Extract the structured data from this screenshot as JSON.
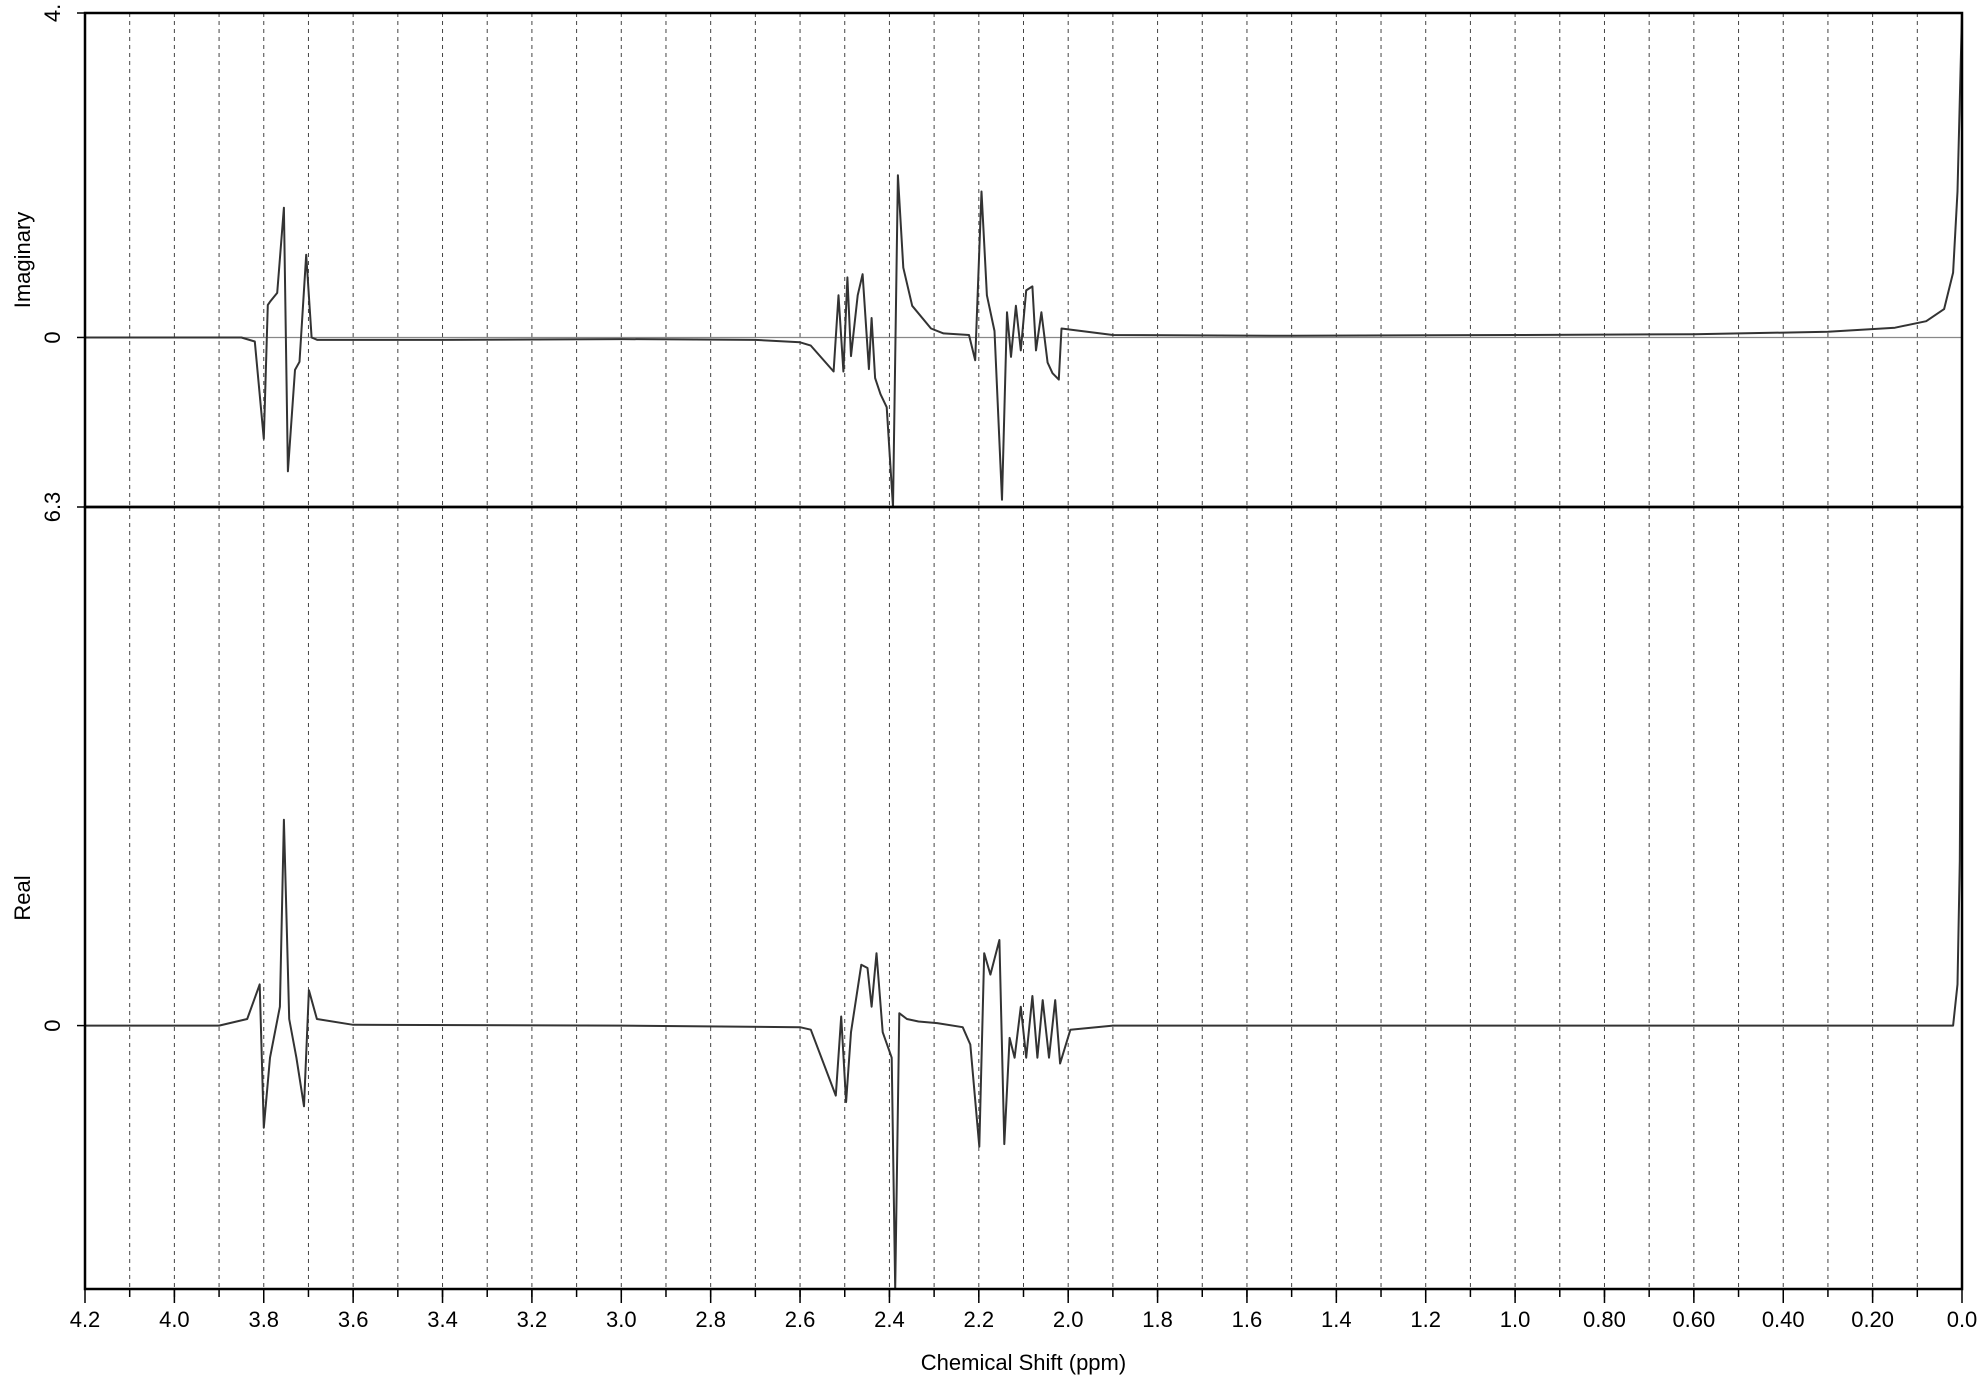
{
  "chart_data": [
    {
      "type": "line",
      "ylabel": "Imaginary",
      "color": "#333333",
      "zero_line": true,
      "xlim": [
        4.2,
        0.0
      ],
      "ylim": [
        -2.09,
        4
      ],
      "yticks": [
        0,
        {
          "value": 4,
          "label": "4."
        }
      ],
      "xgrid": [
        4.1,
        4.0,
        3.9,
        3.8,
        3.7,
        3.6,
        3.5,
        3.4,
        3.3,
        3.2,
        3.1,
        3.0,
        2.9,
        2.8,
        2.7,
        2.6,
        2.5,
        2.4,
        2.3,
        2.2,
        2.1,
        2.0,
        1.9,
        1.8,
        1.7,
        1.6,
        1.5,
        1.4,
        1.3,
        1.2,
        1.1,
        1.0,
        0.9,
        0.8,
        0.7,
        0.6,
        0.5,
        0.4,
        0.3,
        0.2,
        0.1
      ],
      "x": [
        4.2,
        3.85,
        3.82,
        3.8,
        3.791,
        3.786,
        3.77,
        3.755,
        3.746,
        3.73,
        3.72,
        3.705,
        3.693,
        3.68,
        3.4,
        3.0,
        2.7,
        2.6,
        2.576,
        2.525,
        2.514,
        2.503,
        2.494,
        2.486,
        2.471,
        2.46,
        2.446,
        2.44,
        2.432,
        2.42,
        2.406,
        2.392,
        2.381,
        2.369,
        2.349,
        2.307,
        2.279,
        2.222,
        2.208,
        2.194,
        2.182,
        2.165,
        2.148,
        2.137,
        2.128,
        2.117,
        2.106,
        2.094,
        2.08,
        2.072,
        2.06,
        2.046,
        2.035,
        2.021,
        2.015,
        1.9,
        1.5,
        1.0,
        0.6,
        0.3,
        0.15,
        0.08,
        0.04,
        0.02,
        0.01,
        0.0
      ],
      "values": [
        0,
        0,
        -0.05,
        -1.25,
        0.4,
        0.44,
        0.55,
        1.6,
        -1.65,
        -0.4,
        -0.3,
        1.02,
        0,
        -0.03,
        -0.03,
        -0.02,
        -0.03,
        -0.06,
        -0.1,
        -0.42,
        0.52,
        -0.42,
        0.74,
        -0.23,
        0.52,
        0.78,
        -0.39,
        0.24,
        -0.5,
        -0.7,
        -0.86,
        -2.09,
        2.0,
        0.86,
        0.39,
        0.11,
        0.05,
        0.03,
        -0.28,
        1.8,
        0.52,
        0.08,
        -2.0,
        0.31,
        -0.24,
        0.39,
        -0.16,
        0.58,
        0.63,
        -0.16,
        0.31,
        -0.31,
        -0.44,
        -0.52,
        0.11,
        0.03,
        0.02,
        0.03,
        0.04,
        0.07,
        0.12,
        0.2,
        0.35,
        0.8,
        1.8,
        4
      ]
    },
    {
      "type": "line",
      "ylabel": "Real",
      "xlabel": "Chemical Shift (ppm)",
      "color": "#333333",
      "zero_line": false,
      "xlim": [
        4.2,
        0.0
      ],
      "ylim": [
        -3.2,
        6.3
      ],
      "yticks": [
        0,
        6.3
      ],
      "xticks": [
        4.2,
        {
          "value": 4,
          "label": "4.0"
        },
        3.8,
        3.6,
        3.4,
        3.2,
        {
          "value": 3,
          "label": "3.0"
        },
        2.8,
        2.6,
        2.4,
        2.2,
        {
          "value": 2,
          "label": "2.0"
        },
        1.8,
        1.6,
        1.4,
        1.2,
        {
          "value": 1,
          "label": "1.0"
        },
        {
          "value": 0.8,
          "label": "0.80"
        },
        {
          "value": 0.6,
          "label": "0.60"
        },
        {
          "value": 0.4,
          "label": "0.40"
        },
        {
          "value": 0.2,
          "label": "0.20"
        },
        {
          "value": 0,
          "label": "0.0"
        }
      ],
      "xgrid": [
        4.1,
        4.0,
        3.9,
        3.8,
        3.7,
        3.6,
        3.5,
        3.4,
        3.3,
        3.2,
        3.1,
        3.0,
        2.9,
        2.8,
        2.7,
        2.6,
        2.5,
        2.4,
        2.3,
        2.2,
        2.1,
        2.0,
        1.9,
        1.8,
        1.7,
        1.6,
        1.5,
        1.4,
        1.3,
        1.2,
        1.1,
        1.0,
        0.9,
        0.8,
        0.7,
        0.6,
        0.5,
        0.4,
        0.3,
        0.2,
        0.1
      ],
      "x": [
        4.2,
        3.9,
        3.837,
        3.809,
        3.8,
        3.786,
        3.764,
        3.755,
        3.743,
        3.727,
        3.71,
        3.699,
        3.681,
        3.6,
        3.0,
        2.6,
        2.576,
        2.52,
        2.508,
        2.497,
        2.486,
        2.463,
        2.449,
        2.44,
        2.429,
        2.415,
        2.395,
        2.387,
        2.378,
        2.361,
        2.335,
        2.293,
        2.236,
        2.219,
        2.199,
        2.188,
        2.174,
        2.154,
        2.143,
        2.131,
        2.12,
        2.106,
        2.094,
        2.08,
        2.069,
        2.057,
        2.043,
        2.029,
        2.018,
        1.995,
        1.9,
        1.0,
        0.02,
        0.01,
        0.005,
        0.0
      ],
      "values": [
        0,
        0,
        0.08,
        0.5,
        -1.24,
        -0.39,
        0.23,
        2.5,
        0.08,
        -0.39,
        -0.98,
        0.43,
        0.08,
        0.01,
        0,
        -0.02,
        -0.05,
        -0.85,
        0.11,
        -0.93,
        -0.08,
        0.74,
        0.7,
        0.23,
        0.88,
        -0.08,
        -0.39,
        -3.2,
        0.15,
        0.08,
        0.05,
        0.03,
        -0.02,
        -0.23,
        -1.47,
        0.88,
        0.62,
        1.04,
        -1.44,
        -0.15,
        -0.39,
        0.23,
        -0.39,
        0.36,
        -0.39,
        0.31,
        -0.39,
        0.31,
        -0.46,
        -0.05,
        0,
        0,
        0,
        0.5,
        2.0,
        6.3
      ]
    }
  ]
}
